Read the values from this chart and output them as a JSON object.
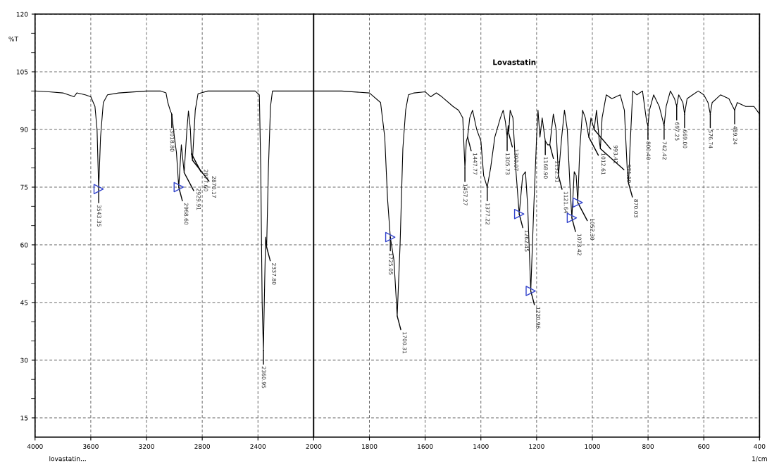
{
  "chart_data": [
    {
      "type": "line",
      "ylabel": "%T",
      "xlim": [
        4000,
        2000
      ],
      "xticks": [
        4000,
        3600,
        3200,
        2800,
        2400
      ],
      "ylim": [
        10,
        120
      ],
      "yticks": [
        15,
        30,
        45,
        60,
        75,
        90,
        105,
        120
      ],
      "grid": true,
      "marker": "none",
      "line_style": "solid",
      "annotations": [
        "lovastatin...",
        {
          "text": "3543.35",
          "x": 3543.35,
          "y": 74.5
        },
        {
          "text": "3018.80",
          "x": 3018.8,
          "y": 94
        },
        {
          "text": "2968.60",
          "x": 2968.6,
          "y": 75
        },
        {
          "text": "2929.91",
          "x": 2929.91,
          "y": 78.8
        },
        {
          "text": "2877.60",
          "x": 2877.6,
          "y": 83.7
        },
        {
          "text": "2870.17",
          "x": 2870.17,
          "y": 82
        },
        {
          "text": "2360.95",
          "x": 2360.95,
          "y": 32.5
        },
        {
          "text": "2337.80",
          "x": 2337.8,
          "y": 59.4
        }
      ],
      "series": [
        {
          "color": "#000000",
          "x": [
            4000,
            3900,
            3800,
            3720,
            3700,
            3640,
            3600,
            3570,
            3555,
            3543.35,
            3530,
            3510,
            3480,
            3400,
            3200,
            3100,
            3060,
            3047,
            3030,
            3018.8,
            3000,
            2985,
            2968.6,
            2950,
            2929.91,
            2910,
            2899,
            2885,
            2877.6,
            2870.17,
            2850,
            2830,
            2760,
            2600,
            2420,
            2390,
            2380,
            2370,
            2360.95,
            2352,
            2345,
            2337.8,
            2325,
            2310,
            2296,
            2200,
            2000
          ],
          "values": [
            100,
            99.8,
            99.5,
            98.5,
            99.5,
            99,
            98.5,
            96,
            90,
            74.5,
            88,
            97,
            99,
            99.5,
            100,
            100,
            99.5,
            97,
            95,
            94,
            88,
            84,
            75,
            86,
            78.8,
            90,
            94.8,
            90,
            83.7,
            82,
            95,
            99.3,
            100,
            100,
            100,
            99,
            80,
            45,
            32.5,
            50,
            62,
            59.4,
            80,
            96,
            100,
            100,
            100
          ]
        },
        {
          "type": "scatter",
          "marker": "triangle",
          "color": "#3344cc",
          "x": [
            3543.35,
            2968.6
          ],
          "values": [
            74.5,
            75
          ]
        }
      ]
    },
    {
      "type": "line",
      "title": "Lovastatin",
      "xlabel": "1/cm",
      "xlim": [
        2000,
        400
      ],
      "xticks": [
        2000,
        1800,
        1600,
        1400,
        1200,
        1000,
        800,
        600,
        400
      ],
      "ylim": [
        10,
        120
      ],
      "yticks": [
        15,
        30,
        45,
        60,
        75,
        90,
        105,
        120
      ],
      "tick_labels": "x",
      "grid": true,
      "marker": "none",
      "line_style": "solid",
      "annotations": [
        {
          "text": "1725.05",
          "x": 1725.05,
          "y": 62
        },
        {
          "text": "1700.31",
          "x": 1700.31,
          "y": 41.5
        },
        {
          "text": "1457.27",
          "x": 1457.27,
          "y": 80
        },
        {
          "text": "1447.77",
          "x": 1447.77,
          "y": 88
        },
        {
          "text": "1377.22",
          "x": 1377.22,
          "y": 75
        },
        {
          "text": "1305.73",
          "x": 1305.73,
          "y": 88
        },
        {
          "text": "1300.07",
          "x": 1300.07,
          "y": 89
        },
        {
          "text": "1262.45",
          "x": 1262.45,
          "y": 68
        },
        {
          "text": "1220.96",
          "x": 1220.96,
          "y": 48
        },
        {
          "text": "1168.90",
          "x": 1168.9,
          "y": 87
        },
        {
          "text": "1152.51",
          "x": 1152.51,
          "y": 86
        },
        {
          "text": "1121.64",
          "x": 1121.64,
          "y": 78
        },
        {
          "text": "1073.42",
          "x": 1073.42,
          "y": 67
        },
        {
          "text": "1052.30",
          "x": 1052.3,
          "y": 71
        },
        {
          "text": "1012.61",
          "x": 1012.61,
          "y": 88
        },
        {
          "text": "993.41",
          "x": 993.41,
          "y": 90
        },
        {
          "text": "971.19",
          "x": 971.19,
          "y": 85
        },
        {
          "text": "870.03",
          "x": 870.03,
          "y": 76
        },
        {
          "text": "800.40",
          "x": 800.4,
          "y": 91
        },
        {
          "text": "742.42",
          "x": 742.42,
          "y": 91
        },
        {
          "text": "697.25",
          "x": 697.25,
          "y": 96
        },
        {
          "text": "669.00",
          "x": 669.0,
          "y": 94
        },
        {
          "text": "576.74",
          "x": 576.74,
          "y": 94
        },
        {
          "text": "489.24",
          "x": 489.24,
          "y": 95
        }
      ],
      "series": [
        {
          "color": "#000000",
          "x": [
            2000,
            1900,
            1800,
            1760,
            1745,
            1735,
            1725.05,
            1712,
            1700.31,
            1690,
            1680,
            1670,
            1660,
            1640,
            1600,
            1580,
            1560,
            1540,
            1500,
            1480,
            1465,
            1457.27,
            1452,
            1447.77,
            1440,
            1430,
            1415,
            1400,
            1390,
            1377.22,
            1365,
            1350,
            1330,
            1320,
            1312,
            1305.73,
            1302,
            1300.07,
            1295,
            1285,
            1275,
            1262.45,
            1250,
            1240,
            1232,
            1220.96,
            1210,
            1200,
            1195,
            1188,
            1180,
            1168.9,
            1160,
            1152.51,
            1140,
            1130,
            1121.64,
            1110,
            1100,
            1090,
            1080,
            1073.42,
            1065,
            1058,
            1052.3,
            1045,
            1035,
            1025,
            1012.61,
            1005,
            993.41,
            985,
            975,
            971.19,
            965,
            950,
            930,
            900,
            885,
            875,
            870.03,
            865,
            855,
            840,
            820,
            805,
            800.4,
            795,
            780,
            760,
            742.42,
            735,
            720,
            705,
            697.25,
            690,
            675,
            669,
            660,
            640,
            620,
            600,
            585,
            576.74,
            570,
            540,
            510,
            489.24,
            480,
            450,
            420,
            400
          ],
          "values": [
            100,
            100,
            99.5,
            97,
            88,
            72,
            62,
            56,
            41.5,
            60,
            85,
            95,
            99,
            99.5,
            99.8,
            98.5,
            99.5,
            98.5,
            96,
            95,
            93,
            80,
            87,
            88,
            93,
            95,
            90,
            87,
            78,
            75,
            80,
            88,
            93,
            95,
            92,
            88,
            91,
            89,
            95,
            93,
            80,
            68,
            78,
            79,
            70,
            48,
            70,
            88,
            95,
            88,
            93,
            87,
            86,
            86,
            94,
            90,
            78,
            88,
            95,
            90,
            75,
            67,
            79,
            78,
            71,
            85,
            95,
            93,
            88,
            93,
            90,
            95,
            87,
            85,
            93,
            99,
            98,
            99,
            95,
            80,
            76,
            85,
            100,
            99,
            100,
            92,
            91,
            95,
            99,
            96,
            91,
            96,
            100,
            98,
            96,
            99,
            97,
            94,
            98,
            99,
            100,
            99,
            97,
            94,
            97,
            99,
            98,
            95,
            97,
            96,
            96,
            94
          ]
        },
        {
          "type": "scatter",
          "marker": "triangle",
          "color": "#3344cc",
          "x": [
            1725.05,
            1262.45,
            1220.96,
            1073.42,
            1052.3
          ],
          "values": [
            62,
            68,
            48,
            67,
            71
          ]
        }
      ]
    }
  ]
}
